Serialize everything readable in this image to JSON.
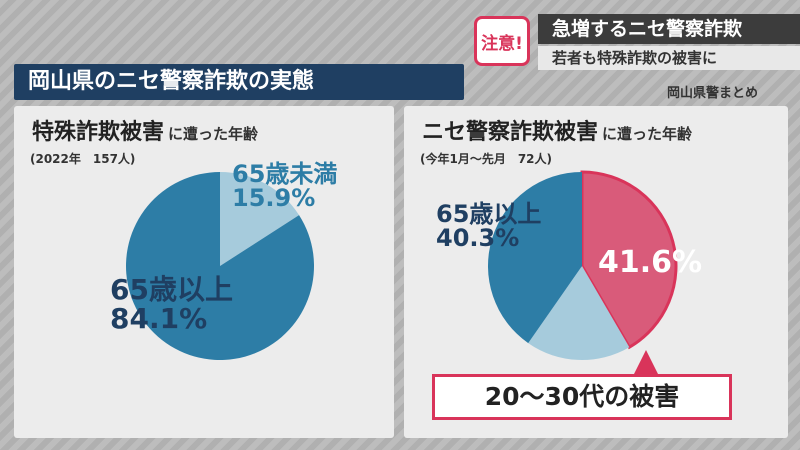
{
  "header": {
    "badge": "注意!",
    "headline": "急増するニセ警察詐欺",
    "subheadline": "若者も特殊詐欺の被害に"
  },
  "main_title": "岡山県のニセ警察詐欺の実態",
  "source": "岡山県警まとめ",
  "left_panel": {
    "title_big": "特殊詐欺被害",
    "title_small": "に遭った年齢",
    "note": "(2022年　157人)"
  },
  "right_panel": {
    "title_big": "ニセ警察詐欺被害",
    "title_small": "に遭った年齢",
    "note": "(今年1月～先月　72人)",
    "callout": "20～30代の被害"
  },
  "colors": {
    "dark_blue": "#2d7da6",
    "light_blue": "#a6cbdc",
    "pink": "#d95b7a",
    "navy": "#1f3f62"
  },
  "chart_data": [
    {
      "type": "pie",
      "title": "特殊詐欺被害 に遭った年齢",
      "slices": [
        {
          "label": "65歳未満",
          "value": 15.9,
          "display": "15.9%"
        },
        {
          "label": "65歳以上",
          "value": 84.1,
          "display": "84.1%"
        }
      ]
    },
    {
      "type": "pie",
      "title": "ニセ警察詐欺被害 に遭った年齢",
      "slices": [
        {
          "label": "20～30代",
          "value": 41.6,
          "display": "41.6%"
        },
        {
          "label": "",
          "value": 18.1,
          "display": ""
        },
        {
          "label": "65歳以上",
          "value": 40.3,
          "display": "40.3%"
        }
      ]
    }
  ]
}
